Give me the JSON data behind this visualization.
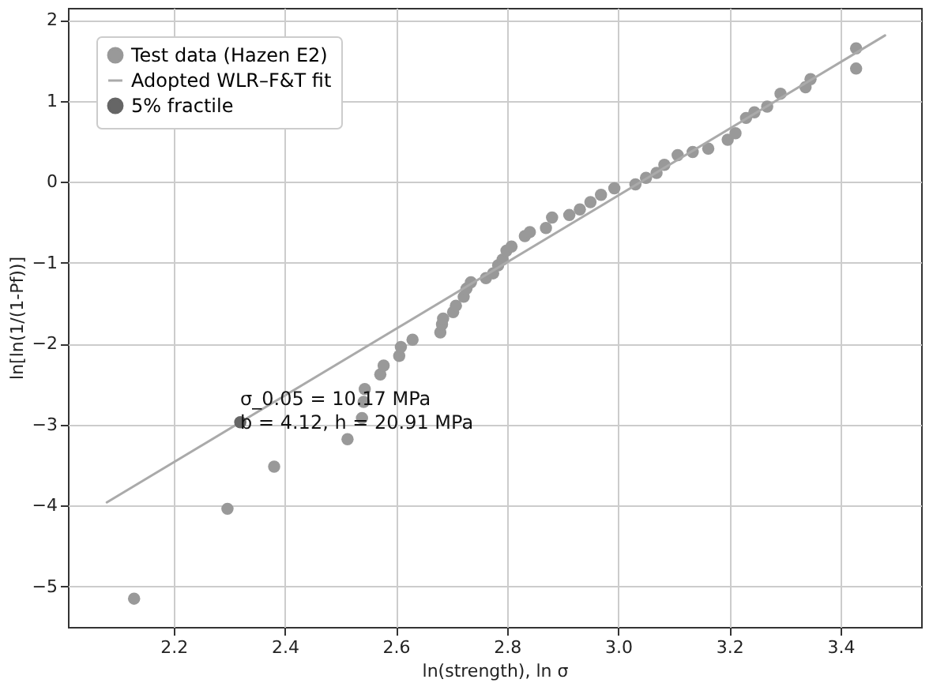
{
  "chart_data": {
    "type": "scatter",
    "xlabel": "ln(strength), ln σ",
    "ylabel": "ln[ln(1/(1-Pf))]",
    "xlim": [
      2.01,
      3.545
    ],
    "ylim": [
      -5.5,
      2.15
    ],
    "xticks": [
      2.2,
      2.4,
      2.6,
      2.8,
      {
        "value": 3,
        "label": "3.0"
      },
      3.2,
      3.4
    ],
    "yticks": [
      -5,
      -4,
      -3,
      -2,
      -1,
      0,
      1,
      2
    ],
    "grid": true,
    "legend": "top left",
    "series": [
      {
        "name": "Test data (Hazen E2)",
        "marker": "circle",
        "color": "#999999",
        "x": [
          2.129,
          2.297,
          2.381,
          2.513,
          2.539,
          2.542,
          2.544,
          2.572,
          2.578,
          2.606,
          2.609,
          2.63,
          2.68,
          2.683,
          2.685,
          2.703,
          2.708,
          2.722,
          2.727,
          2.735,
          2.762,
          2.775,
          2.784,
          2.792,
          2.799,
          2.808,
          2.832,
          2.841,
          2.87,
          2.881,
          2.912,
          2.931,
          2.95,
          2.969,
          2.993,
          3.031,
          3.05,
          3.069,
          3.083,
          3.107,
          3.134,
          3.162,
          3.197,
          3.211,
          3.23,
          3.245,
          3.268,
          3.292,
          3.337,
          3.346,
          3.428,
          3.428
        ],
        "values": [
          -5.15,
          -4.04,
          -3.52,
          -3.18,
          -2.92,
          -2.72,
          -2.56,
          -2.38,
          -2.27,
          -2.15,
          -2.04,
          -1.95,
          -1.86,
          -1.76,
          -1.69,
          -1.61,
          -1.53,
          -1.42,
          -1.32,
          -1.24,
          -1.19,
          -1.13,
          -1.03,
          -0.96,
          -0.85,
          -0.8,
          -0.67,
          -0.62,
          -0.57,
          -0.44,
          -0.41,
          -0.34,
          -0.25,
          -0.16,
          -0.08,
          -0.03,
          0.05,
          0.11,
          0.21,
          0.33,
          0.37,
          0.41,
          0.52,
          0.6,
          0.79,
          0.86,
          0.93,
          1.09,
          1.17,
          1.27,
          1.65,
          1.4
        ]
      },
      {
        "name": "Adopted WLR–F&T fit",
        "type": "line",
        "color": "#aaaaaa",
        "x": [
          2.08,
          3.48
        ],
        "values": [
          -3.96,
          1.81
        ]
      },
      {
        "name": "5% fractile",
        "marker": "circle",
        "color": "#666666",
        "x": [
          2.32
        ],
        "values": [
          -2.97
        ]
      }
    ],
    "annotations": [
      {
        "text": "σ_0.05 = 10.17 MPa\nb = 4.12, h = 20.91 MPa",
        "x": 2.32,
        "y": -2.97
      }
    ]
  }
}
